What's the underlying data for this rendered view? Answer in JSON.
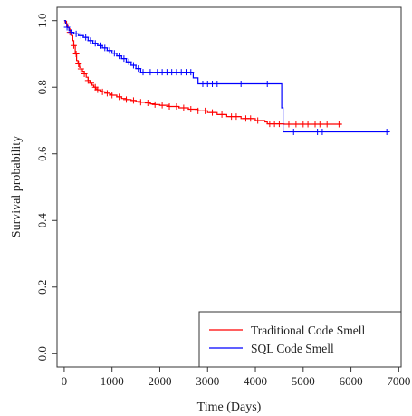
{
  "chart_data": {
    "type": "line",
    "subtype": "kaplan-meier step",
    "xlabel": "Time (Days)",
    "ylabel": "Survival probability",
    "xlim": [
      -150,
      7050
    ],
    "ylim": [
      -0.04,
      1.04
    ],
    "x_ticks": [
      0,
      1000,
      2000,
      3000,
      4000,
      5000,
      6000,
      7000
    ],
    "y_ticks": [
      0.0,
      0.2,
      0.4,
      0.6,
      0.8,
      1.0
    ],
    "y_tick_labels": [
      "0.0",
      "0.2",
      "0.4",
      "0.6",
      "0.8",
      "1.0"
    ],
    "grid": false,
    "legend_position": "bottom-right",
    "series": [
      {
        "name": "Traditional Code Smell",
        "color": "#ff0000",
        "x": [
          0,
          20,
          40,
          60,
          80,
          100,
          120,
          150,
          180,
          200,
          230,
          260,
          290,
          320,
          350,
          380,
          420,
          460,
          500,
          540,
          580,
          620,
          660,
          700,
          750,
          800,
          850,
          900,
          950,
          1000,
          1100,
          1200,
          1300,
          1400,
          1500,
          1600,
          1700,
          1800,
          1900,
          2000,
          2200,
          2400,
          2600,
          2800,
          3000,
          3200,
          3400,
          3700,
          4000,
          4200,
          4250,
          4600,
          5800
        ],
        "y": [
          1.0,
          0.995,
          0.99,
          0.985,
          0.98,
          0.975,
          0.965,
          0.955,
          0.94,
          0.925,
          0.9,
          0.88,
          0.87,
          0.86,
          0.855,
          0.848,
          0.84,
          0.83,
          0.82,
          0.812,
          0.806,
          0.8,
          0.795,
          0.792,
          0.789,
          0.786,
          0.784,
          0.782,
          0.779,
          0.776,
          0.771,
          0.766,
          0.763,
          0.76,
          0.757,
          0.755,
          0.753,
          0.75,
          0.748,
          0.746,
          0.742,
          0.738,
          0.734,
          0.729,
          0.724,
          0.718,
          0.712,
          0.706,
          0.7,
          0.696,
          0.69,
          0.689,
          0.689
        ],
        "censor_x": [
          50,
          120,
          200,
          250,
          300,
          350,
          420,
          500,
          560,
          650,
          700,
          800,
          900,
          1000,
          1150,
          1300,
          1450,
          1600,
          1750,
          1900,
          2050,
          2200,
          2350,
          2500,
          2650,
          2800,
          2950,
          3100,
          3300,
          3500,
          3600,
          3800,
          3900,
          4050,
          4300,
          4400,
          4500,
          4700,
          4850,
          5000,
          5100,
          5250,
          5350,
          5500,
          5750
        ]
      },
      {
        "name": "SQL Code Smell",
        "color": "#0000ff",
        "x": [
          0,
          30,
          60,
          100,
          150,
          200,
          300,
          400,
          500,
          600,
          700,
          800,
          900,
          1000,
          1100,
          1200,
          1300,
          1400,
          1500,
          1600,
          2700,
          2800,
          4550,
          4580,
          6800
        ],
        "y": [
          1.0,
          0.99,
          0.98,
          0.97,
          0.965,
          0.96,
          0.955,
          0.95,
          0.94,
          0.932,
          0.925,
          0.918,
          0.91,
          0.902,
          0.894,
          0.886,
          0.876,
          0.866,
          0.856,
          0.845,
          0.828,
          0.81,
          0.738,
          0.666,
          0.666
        ],
        "censor_x": [
          60,
          150,
          250,
          350,
          450,
          550,
          650,
          750,
          850,
          950,
          1050,
          1150,
          1250,
          1350,
          1450,
          1550,
          1650,
          1800,
          1950,
          2050,
          2150,
          2250,
          2350,
          2450,
          2550,
          2650,
          2900,
          3000,
          3100,
          3200,
          3700,
          4250,
          4800,
          5300,
          5400,
          6750
        ]
      }
    ]
  }
}
